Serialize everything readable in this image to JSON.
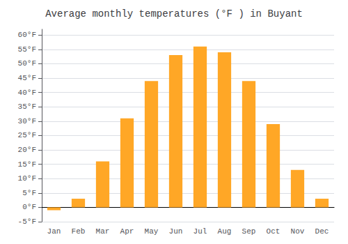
{
  "chart_data": {
    "type": "bar",
    "title": "Average monthly temperatures (°F ) in Buyant",
    "categories": [
      "Jan",
      "Feb",
      "Mar",
      "Apr",
      "May",
      "Jun",
      "Jul",
      "Aug",
      "Sep",
      "Oct",
      "Nov",
      "Dec"
    ],
    "values": [
      -1,
      3,
      16,
      31,
      44,
      53,
      56,
      54,
      44,
      29,
      13,
      3
    ],
    "color": "#FFA726",
    "ylim": [
      -5,
      62
    ],
    "yticks": [
      {
        "value": -5,
        "label": "-5°F"
      },
      {
        "value": 0,
        "label": "0°F"
      },
      {
        "value": 5,
        "label": "5°F"
      },
      {
        "value": 10,
        "label": "10°F"
      },
      {
        "value": 15,
        "label": "15°F"
      },
      {
        "value": 20,
        "label": "20°F"
      },
      {
        "value": 25,
        "label": "25°F"
      },
      {
        "value": 30,
        "label": "30°F"
      },
      {
        "value": 35,
        "label": "35°F"
      },
      {
        "value": 40,
        "label": "40°F"
      },
      {
        "value": 45,
        "label": "45°F"
      },
      {
        "value": 50,
        "label": "50°F"
      },
      {
        "value": 55,
        "label": "55°F"
      },
      {
        "value": 60,
        "label": "60°F"
      }
    ],
    "grid": true
  }
}
